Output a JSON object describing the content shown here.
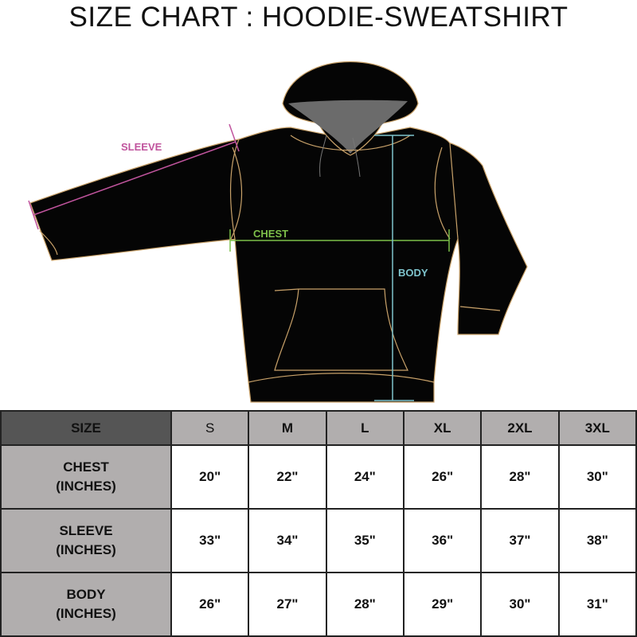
{
  "title": "SIZE CHART : HOODIE-SWEATSHIRT",
  "diagram": {
    "labels": {
      "sleeve": "SLEEVE",
      "chest": "CHEST",
      "body": "BODY"
    },
    "colors": {
      "sleeve": "#c0549d",
      "chest": "#7dc04a",
      "body": "#7ec3cc",
      "garment": "#050505",
      "outline": "#c9a26a",
      "hood_lining": "#6b6b6b"
    }
  },
  "table": {
    "corner": "SIZE",
    "sizes": [
      "S",
      "M",
      "L",
      "XL",
      "2XL",
      "3XL"
    ],
    "rows": [
      {
        "label": "CHEST",
        "unit": "(INCHES)",
        "values": [
          "20\"",
          "22\"",
          "24\"",
          "26\"",
          "28\"",
          "30\""
        ]
      },
      {
        "label": "SLEEVE",
        "unit": "(INCHES)",
        "values": [
          "33\"",
          "34\"",
          "35\"",
          "36\"",
          "37\"",
          "38\""
        ]
      },
      {
        "label": "BODY",
        "unit": "(INCHES)",
        "values": [
          "26\"",
          "27\"",
          "28\"",
          "29\"",
          "30\"",
          "31\""
        ]
      }
    ]
  }
}
